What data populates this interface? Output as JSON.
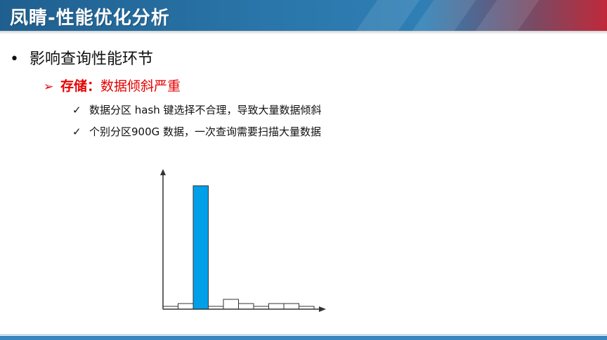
{
  "header": {
    "title": "凤睛-性能优化分析",
    "accent_start": "#1f5f8f",
    "accent_end": "#c0283a"
  },
  "content": {
    "bullet_l1": {
      "marker": "•",
      "text": "影响查询性能环节"
    },
    "bullet_l2": {
      "marker": "➢",
      "strong": "存储：",
      "text": "数据倾斜严重",
      "color": "#e60000"
    },
    "bullet_l3": [
      {
        "marker": "✓",
        "text": "数据分区 hash 键选择不合理，导致大量数据倾斜"
      },
      {
        "marker": "✓",
        "text": "个别分区900G 数据，一次查询需要扫描大量数据"
      }
    ]
  },
  "chart_data": {
    "type": "bar",
    "categories": [
      "",
      "",
      "",
      "",
      "",
      "",
      "",
      "",
      "",
      "",
      ""
    ],
    "values": [
      0.02,
      0.04,
      0.88,
      0.02,
      0.07,
      0.04,
      0.02,
      0.04,
      0.04,
      0.02,
      0
    ],
    "highlight_index": 2,
    "highlight_color": "#00a0e9",
    "bar_color": "#ffffff",
    "ylim": [
      0,
      1
    ],
    "title": "",
    "xlabel": "",
    "ylabel": ""
  }
}
